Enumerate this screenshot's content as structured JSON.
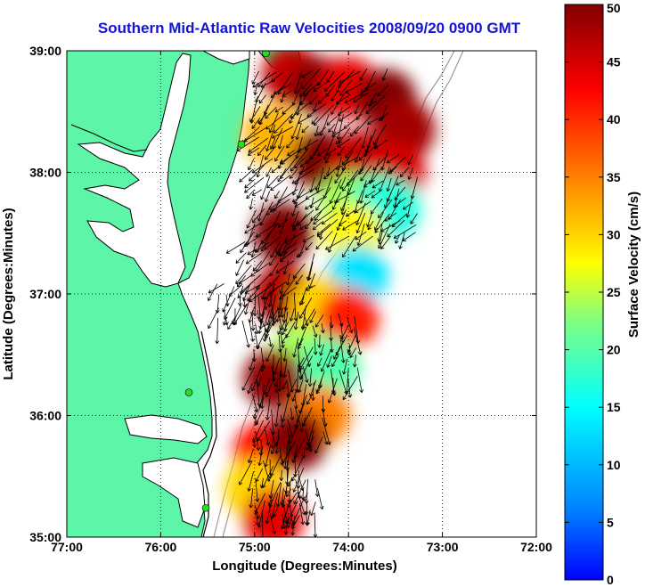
{
  "title": "Southern Mid-Atlantic Raw Velocities 2008/09/20 0900 GMT",
  "colors": {
    "land": "#5df5a8",
    "water": "#ffffff",
    "coast": "#000000",
    "isobath": "#9a9a9a",
    "title": "#1515d6"
  },
  "chart_data": {
    "type": "heatmap",
    "title": "Southern Mid-Atlantic Raw Velocities 2008/09/20 0900 GMT",
    "xlabel": "Longitude (Degrees:Minutes)",
    "ylabel": "Latitude (Degrees:Minutes)",
    "xlim": [
      -77,
      -72
    ],
    "ylim": [
      35,
      39
    ],
    "xticks": [
      -77,
      -76,
      -75,
      -74,
      -73,
      -72
    ],
    "xtick_labels": [
      "77:00",
      "76:00",
      "75:00",
      "74:00",
      "73:00",
      "72:00"
    ],
    "yticks": [
      35,
      36,
      37,
      38,
      39
    ],
    "ytick_labels": [
      "35:00",
      "36:00",
      "37:00",
      "38:00",
      "39:00"
    ],
    "grid": true,
    "colorbar": {
      "label": "Surface Velocity (cm/s)",
      "range": [
        0,
        50
      ],
      "ticks": [
        0,
        5,
        10,
        15,
        20,
        25,
        30,
        35,
        40,
        45,
        50
      ],
      "colormap": "jet"
    },
    "stations": [
      {
        "lon": -74.88,
        "lat": 38.98
      },
      {
        "lon": -75.14,
        "lat": 38.23
      },
      {
        "lon": -75.7,
        "lat": 36.19
      },
      {
        "lon": -75.52,
        "lat": 35.24
      }
    ],
    "speed_field": [
      {
        "lon": -74.6,
        "lat": 38.8,
        "speed": 46
      },
      {
        "lon": -74.3,
        "lat": 38.7,
        "speed": 50
      },
      {
        "lon": -74.0,
        "lat": 38.7,
        "speed": 44
      },
      {
        "lon": -73.6,
        "lat": 38.6,
        "speed": 50
      },
      {
        "lon": -73.4,
        "lat": 38.35,
        "speed": 48
      },
      {
        "lon": -74.8,
        "lat": 38.3,
        "speed": 32
      },
      {
        "lon": -74.3,
        "lat": 38.1,
        "speed": 50
      },
      {
        "lon": -73.9,
        "lat": 38.1,
        "speed": 46
      },
      {
        "lon": -73.5,
        "lat": 38.0,
        "speed": 45
      },
      {
        "lon": -74.0,
        "lat": 37.75,
        "speed": 24
      },
      {
        "lon": -73.7,
        "lat": 37.75,
        "speed": 20
      },
      {
        "lon": -73.55,
        "lat": 37.7,
        "speed": 17
      },
      {
        "lon": -73.95,
        "lat": 37.5,
        "speed": 28
      },
      {
        "lon": -73.9,
        "lat": 37.15,
        "speed": 13
      },
      {
        "lon": -74.7,
        "lat": 37.5,
        "speed": 50
      },
      {
        "lon": -74.7,
        "lat": 37.0,
        "speed": 47
      },
      {
        "lon": -74.3,
        "lat": 36.9,
        "speed": 30
      },
      {
        "lon": -74.0,
        "lat": 36.8,
        "speed": 41
      },
      {
        "lon": -74.5,
        "lat": 36.5,
        "speed": 24
      },
      {
        "lon": -74.2,
        "lat": 36.4,
        "speed": 20
      },
      {
        "lon": -74.8,
        "lat": 36.3,
        "speed": 49
      },
      {
        "lon": -74.3,
        "lat": 36.0,
        "speed": 35
      },
      {
        "lon": -74.9,
        "lat": 35.7,
        "speed": 42
      },
      {
        "lon": -74.55,
        "lat": 35.8,
        "speed": 50
      },
      {
        "lon": -75.0,
        "lat": 35.4,
        "speed": 30
      },
      {
        "lon": -74.8,
        "lat": 35.15,
        "speed": 44
      }
    ]
  }
}
